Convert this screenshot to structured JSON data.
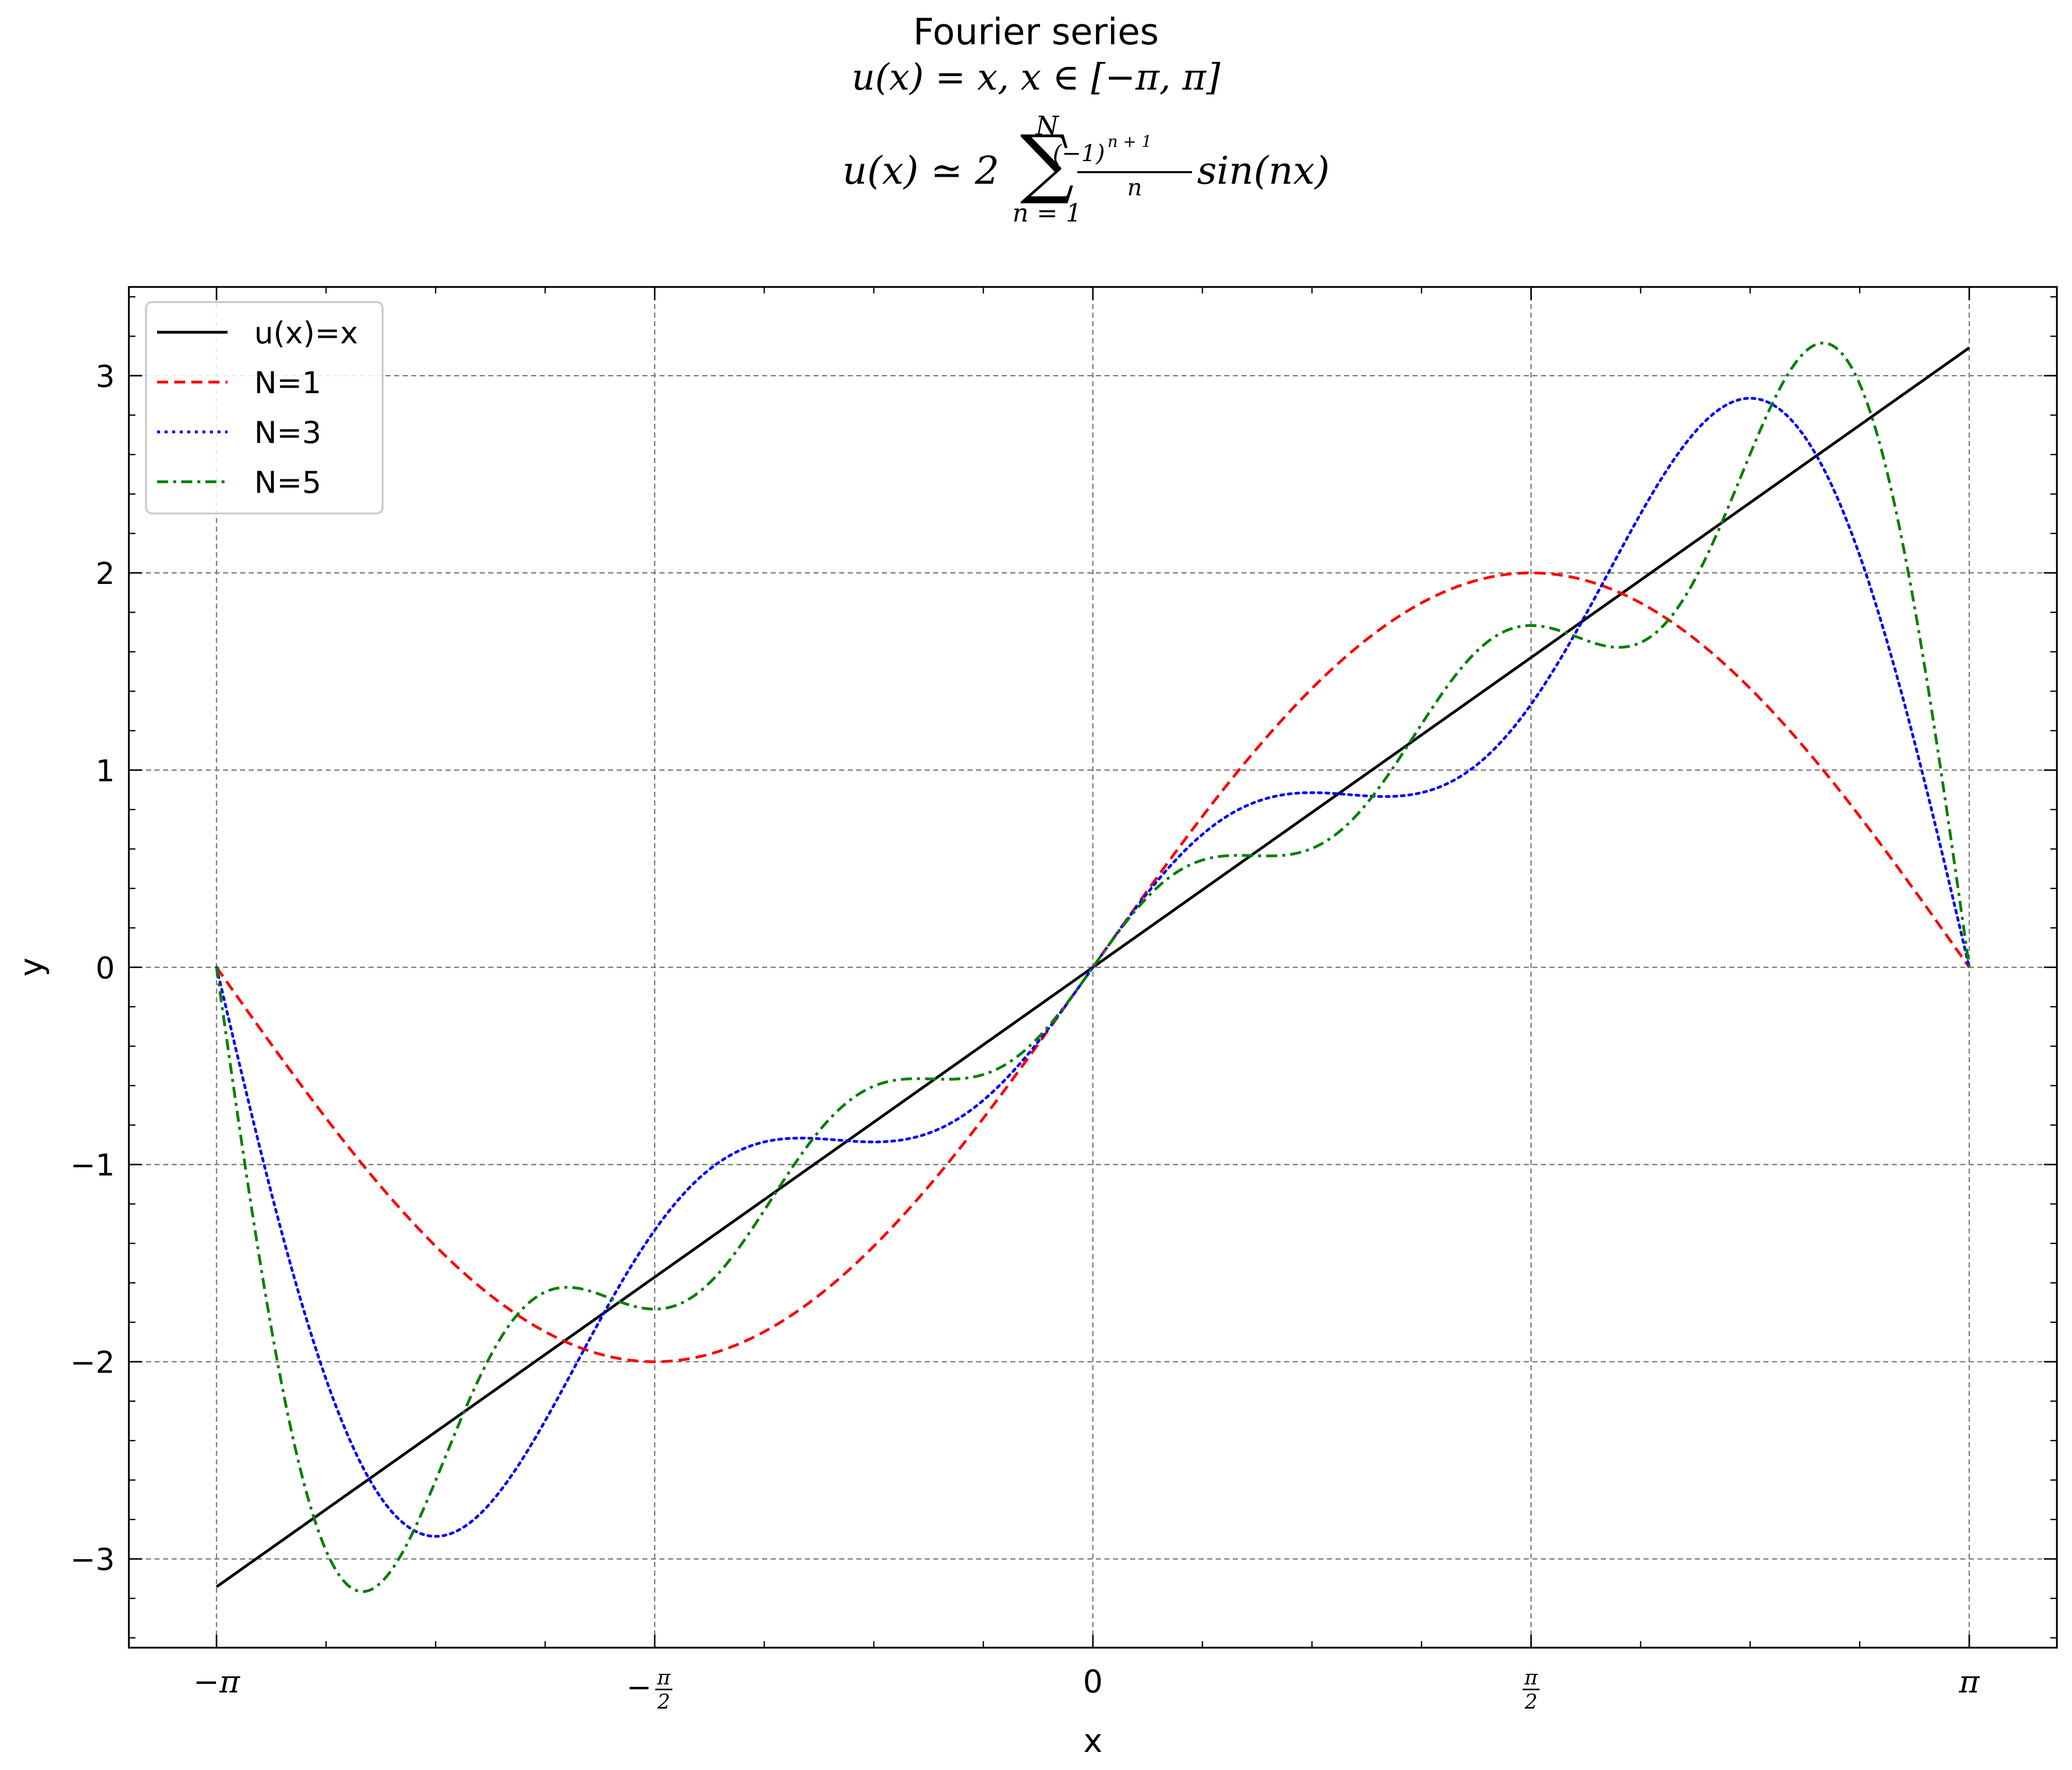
{
  "chart_data": {
    "type": "line",
    "title": "Fourier series",
    "subtitle_lines": [
      "u(x) = x, x ∈ [−π, π]"
    ],
    "formula": {
      "lhs": "u(x) ≃ 2",
      "sum_upper": "N",
      "sum_lower": "n = 1",
      "frac_num": "(−1)",
      "frac_exp": "n + 1",
      "frac_den": "n",
      "tail": "sin(nx)"
    },
    "xlabel": "x",
    "ylabel": "y",
    "xlim": [
      -3.4558,
      3.4558
    ],
    "ylim": [
      -3.45,
      3.45
    ],
    "x_ticks": [
      {
        "value": -3.14159,
        "label": "−π"
      },
      {
        "value": -1.5708,
        "label": "−",
        "num": "π",
        "den": "2"
      },
      {
        "value": 0,
        "label": "0"
      },
      {
        "value": 1.5708,
        "label": "",
        "num": "π",
        "den": "2"
      },
      {
        "value": 3.14159,
        "label": "π"
      }
    ],
    "y_ticks": [
      {
        "value": -3,
        "label": "−3"
      },
      {
        "value": -2,
        "label": "−2"
      },
      {
        "value": -1,
        "label": "−1"
      },
      {
        "value": 0,
        "label": "0"
      },
      {
        "value": 1,
        "label": "1"
      },
      {
        "value": 2,
        "label": "2"
      },
      {
        "value": 3,
        "label": "3"
      }
    ],
    "grid": true,
    "legend_position": "top-left",
    "series": [
      {
        "name": "u(x)=x",
        "kind": "identity",
        "color": "#000000",
        "style": "solid"
      },
      {
        "name": "N=1",
        "kind": "fourier",
        "N": 1,
        "color": "#ff0000",
        "style": "dashed"
      },
      {
        "name": "N=3",
        "kind": "fourier",
        "N": 3,
        "color": "#0000ff",
        "style": "dotted"
      },
      {
        "name": "N=5",
        "kind": "fourier",
        "N": 5,
        "color": "#008000",
        "style": "dashdot"
      }
    ]
  }
}
